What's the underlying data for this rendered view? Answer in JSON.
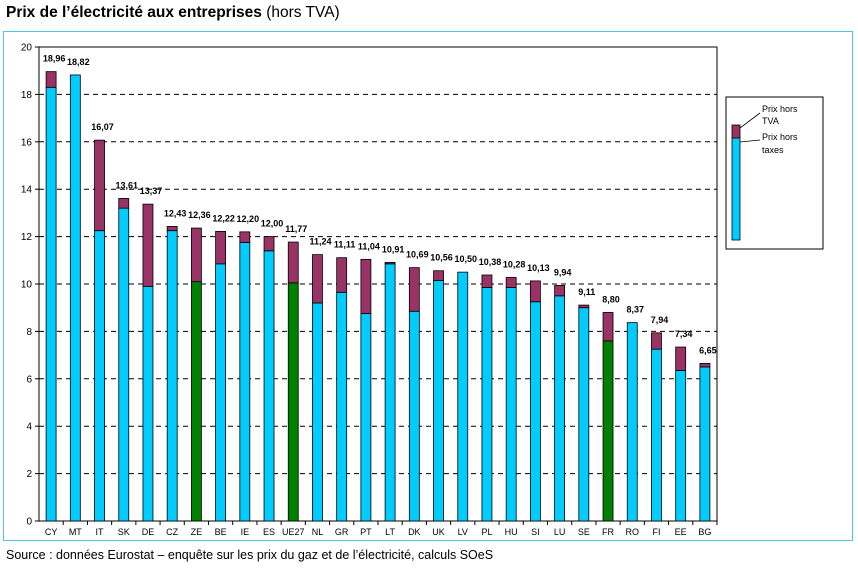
{
  "title": {
    "bold": "Prix de l’électricité aux entreprises",
    "normal": "(hors TVA)"
  },
  "source": "Source : données Eurostat – enquête sur les prix du gaz et de l’électricité, calculs SOeS",
  "colors": {
    "base": "#00ccff",
    "base_highlight": "#008000",
    "taxes": "#993366",
    "frame": "#4ec3e8"
  },
  "chart_data": {
    "type": "bar",
    "stacked": true,
    "title": "Prix de l’électricité aux entreprises (hors TVA)",
    "xlabel": "",
    "ylabel": "",
    "ylim": [
      0,
      20
    ],
    "yticks": [
      0,
      2,
      4,
      6,
      8,
      10,
      12,
      14,
      16,
      18,
      20
    ],
    "grid": true,
    "legend_position": "right",
    "categories": [
      "CY",
      "MT",
      "IT",
      "SK",
      "DE",
      "CZ",
      "ZE",
      "BE",
      "IE",
      "ES",
      "UE27",
      "NL",
      "GR",
      "PT",
      "LT",
      "DK",
      "UK",
      "LV",
      "PL",
      "HU",
      "SI",
      "LU",
      "SE",
      "FR",
      "RO",
      "FI",
      "EE",
      "BG"
    ],
    "highlighted": [
      "ZE",
      "UE27",
      "FR"
    ],
    "totals": [
      18.96,
      18.82,
      16.07,
      13.61,
      13.37,
      12.43,
      12.36,
      12.22,
      12.2,
      12.0,
      11.77,
      11.24,
      11.11,
      11.04,
      10.91,
      10.69,
      10.56,
      10.5,
      10.38,
      10.28,
      10.13,
      9.94,
      9.11,
      8.8,
      8.37,
      7.94,
      7.34,
      6.65
    ],
    "total_labels": [
      "18,96",
      "18,82",
      "16,07",
      "13,61",
      "13,37",
      "12,43",
      "12,36",
      "12,22",
      "12,20",
      "12,00",
      "11,77",
      "11,24",
      "11,11",
      "11,04",
      "10,91",
      "10,69",
      "10,56",
      "10,50",
      "10,38",
      "10,28",
      "10,13",
      "9,94",
      "9,11",
      "8,80",
      "8,37",
      "7,94",
      "7,34",
      "6,65"
    ],
    "series": [
      {
        "name": "Prix hors taxes",
        "values": [
          18.3,
          18.82,
          12.25,
          13.2,
          9.9,
          12.25,
          10.1,
          10.85,
          11.75,
          11.4,
          10.05,
          9.2,
          9.65,
          8.75,
          10.85,
          8.85,
          10.15,
          10.5,
          9.85,
          9.85,
          9.25,
          9.5,
          9.0,
          7.6,
          8.37,
          7.25,
          6.35,
          6.5
        ]
      },
      {
        "name": "Prix hors TVA",
        "values": [
          0.66,
          0.0,
          3.82,
          0.41,
          3.47,
          0.18,
          2.26,
          1.37,
          0.45,
          0.6,
          1.72,
          2.04,
          1.46,
          2.29,
          0.06,
          1.84,
          0.41,
          0.0,
          0.53,
          0.43,
          0.88,
          0.44,
          0.11,
          1.2,
          0.0,
          0.69,
          0.99,
          0.15
        ]
      }
    ],
    "legend": {
      "tva_lines": [
        "Prix hors",
        "TVA"
      ],
      "taxes_lines": [
        "Prix hors",
        "taxes"
      ]
    }
  }
}
